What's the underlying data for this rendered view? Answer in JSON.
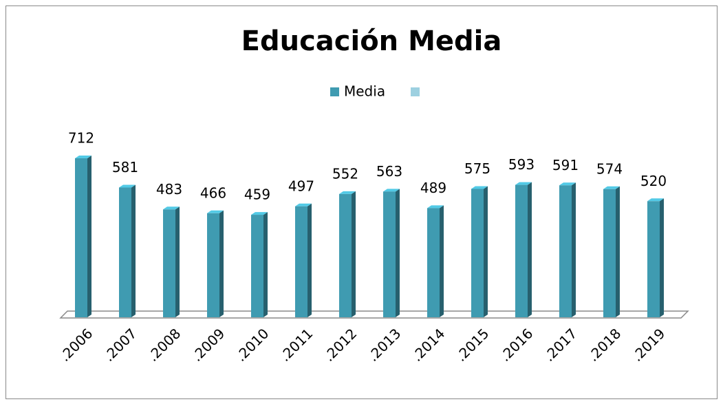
{
  "chart_data": {
    "type": "bar",
    "title": "Educación Media",
    "categories": [
      ".2006",
      ".2007",
      ".2008",
      ".2009",
      ".2010",
      ".2011",
      ".2012",
      ".2013",
      ".2014",
      ".2015",
      ".2016",
      ".2017",
      ".2018",
      ".2019"
    ],
    "series": [
      {
        "name": "Media",
        "color": "#3f9bb1",
        "values": [
          712,
          581,
          483,
          466,
          459,
          497,
          552,
          563,
          489,
          575,
          593,
          591,
          574,
          520
        ]
      }
    ],
    "legend": "top"
  }
}
